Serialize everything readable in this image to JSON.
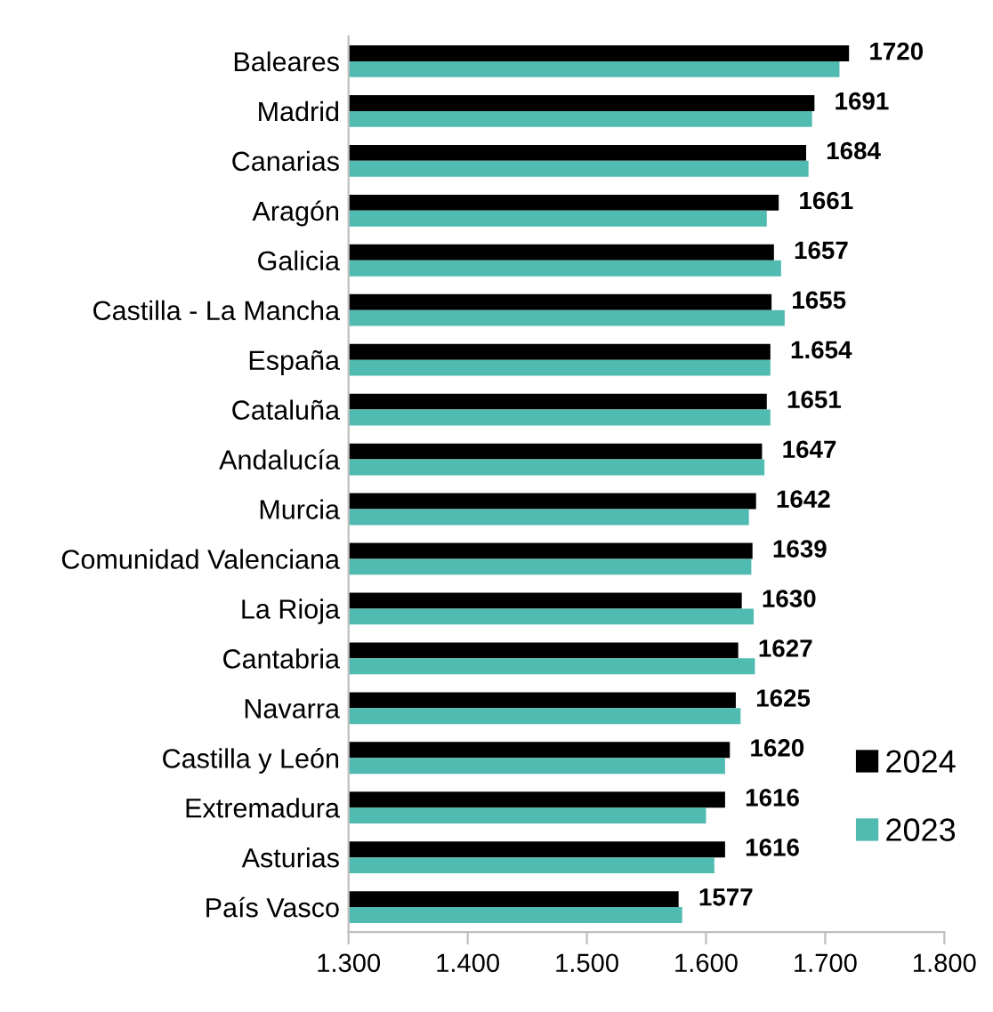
{
  "chart_data": {
    "type": "bar",
    "orientation": "horizontal",
    "categories": [
      "Baleares",
      "Madrid",
      "Canarias",
      "Aragón",
      "Galicia",
      "Castilla - La Mancha",
      "España",
      "Cataluña",
      "Andalucía",
      "Murcia",
      "Comunidad Valenciana",
      "La Rioja",
      "Cantabria",
      "Navarra",
      "Castilla y León",
      "Extremadura",
      "Asturias",
      "País Vasco"
    ],
    "series": [
      {
        "name": "2024",
        "color": "#000000",
        "values": [
          1720,
          1691,
          1684,
          1661,
          1657,
          1655,
          1654,
          1651,
          1647,
          1642,
          1639,
          1630,
          1627,
          1625,
          1620,
          1616,
          1616,
          1577
        ],
        "value_labels": [
          "1720",
          "1691",
          "1684",
          "1661",
          "1657",
          "1655",
          "1.654",
          "1651",
          "1647",
          "1642",
          "1639",
          "1630",
          "1627",
          "1625",
          "1620",
          "1616",
          "1616",
          "1577"
        ]
      },
      {
        "name": "2023",
        "color": "#50bbb0",
        "values": [
          1712,
          1689,
          1686,
          1651,
          1663,
          1666,
          1654,
          1654,
          1649,
          1636,
          1638,
          1640,
          1641,
          1629,
          1616,
          1600,
          1607,
          1580
        ]
      }
    ],
    "xlim": [
      1300,
      1800
    ],
    "xticks": [
      {
        "value": 1300,
        "label": "1.300"
      },
      {
        "value": 1400,
        "label": "1.400"
      },
      {
        "value": 1500,
        "label": "1.500"
      },
      {
        "value": 1600,
        "label": "1.600"
      },
      {
        "value": 1700,
        "label": "1.700"
      },
      {
        "value": 1800,
        "label": "1.800"
      }
    ],
    "grid": false,
    "legend": "bottom right"
  }
}
